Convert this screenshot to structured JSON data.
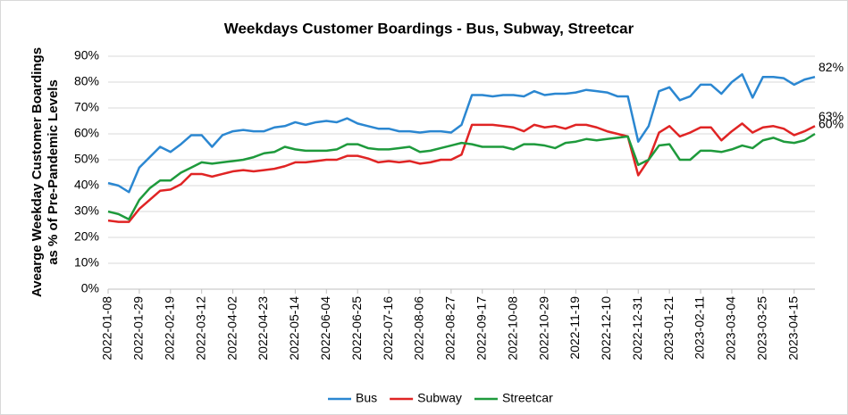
{
  "chart_data": {
    "type": "line",
    "title": "Weekdays Customer Boardings - Bus, Subway, Streetcar",
    "ylabel": [
      "Avearge Weekday Customer Boardings",
      "as % of Pre-Pandemic Levels"
    ],
    "categories": [
      "2022-01-08",
      null,
      null,
      "2022-01-29",
      null,
      null,
      "2022-02-19",
      null,
      null,
      "2022-03-12",
      null,
      null,
      "2022-04-02",
      null,
      null,
      "2022-04-23",
      null,
      null,
      "2022-05-14",
      null,
      null,
      "2022-06-04",
      null,
      null,
      "2022-06-25",
      null,
      null,
      "2022-07-16",
      null,
      null,
      "2022-08-06",
      null,
      null,
      "2022-08-27",
      null,
      null,
      "2022-09-17",
      null,
      null,
      "2022-10-08",
      null,
      null,
      "2022-10-29",
      null,
      null,
      "2022-11-19",
      null,
      null,
      "2022-12-10",
      null,
      null,
      "2022-12-31",
      null,
      null,
      "2023-01-21",
      null,
      null,
      "2023-02-11",
      null,
      null,
      "2023-03-04",
      null,
      null,
      "2023-03-25",
      null,
      null,
      "2023-04-15",
      null,
      null
    ],
    "series": [
      {
        "name": "Bus",
        "color": "#2b87d1",
        "end_label": "82%",
        "values": [
          41,
          40,
          37.5,
          47,
          51,
          55,
          53,
          56,
          59.5,
          59.5,
          55,
          59.5,
          61,
          61.5,
          61,
          61,
          62.5,
          63,
          64.5,
          63.5,
          64.5,
          65,
          64.5,
          66,
          64,
          63,
          62,
          62,
          61,
          61,
          60.5,
          61,
          61,
          60.5,
          63.5,
          75,
          75,
          74.5,
          75,
          75,
          74.5,
          76.5,
          75,
          75.5,
          75.5,
          76,
          77,
          76.5,
          76,
          74.5,
          74.5,
          57,
          63,
          76.5,
          78,
          73,
          74.5,
          79,
          79,
          75.5,
          80,
          83,
          74,
          82,
          82,
          81.5,
          79,
          81,
          82
        ]
      },
      {
        "name": "Subway",
        "color": "#e02424",
        "end_label": "63%",
        "values": [
          26.5,
          26,
          26,
          31,
          34.5,
          38,
          38.5,
          40.5,
          44.5,
          44.5,
          43.5,
          44.5,
          45.5,
          46,
          45.5,
          46,
          46.5,
          47.5,
          49,
          49,
          49.5,
          50,
          50,
          51.5,
          51.5,
          50.5,
          49,
          49.5,
          49,
          49.5,
          48.5,
          49,
          50,
          50,
          52,
          63.5,
          63.5,
          63.5,
          63,
          62.5,
          61,
          63.5,
          62.5,
          63,
          62,
          63.5,
          63.5,
          62.5,
          61,
          60,
          59,
          44,
          50,
          60.5,
          63,
          59,
          60.5,
          62.5,
          62.5,
          57.5,
          61,
          64,
          60.5,
          62.5,
          63,
          62,
          59.5,
          61,
          63
        ]
      },
      {
        "name": "Streetcar",
        "color": "#1e9a3c",
        "end_label": "60%",
        "values": [
          30,
          29,
          27,
          34.5,
          39,
          42,
          42,
          45,
          47,
          49,
          48.5,
          49,
          49.5,
          50,
          51,
          52.5,
          53,
          55,
          54,
          53.5,
          53.5,
          53.5,
          54,
          56,
          56,
          54.5,
          54,
          54,
          54.5,
          55,
          53,
          53.5,
          54.5,
          55.5,
          56.5,
          56,
          55,
          55,
          55,
          54,
          56,
          56,
          55.5,
          54.5,
          56.5,
          57,
          58,
          57.5,
          58,
          58.5,
          59,
          48,
          50,
          55.5,
          56,
          50,
          50,
          53.5,
          53.5,
          53,
          54,
          55.5,
          54.5,
          57.5,
          58.5,
          57,
          56.5,
          57.5,
          60
        ]
      }
    ],
    "ylim": [
      0,
      90
    ],
    "yticks": [
      {
        "value": 0,
        "label": "0%"
      },
      {
        "value": 10,
        "label": "10%"
      },
      {
        "value": 20,
        "label": "20%"
      },
      {
        "value": 30,
        "label": "30%"
      },
      {
        "value": 40,
        "label": "40%"
      },
      {
        "value": 50,
        "label": "50%"
      },
      {
        "value": 60,
        "label": "60%"
      },
      {
        "value": 70,
        "label": "70%"
      },
      {
        "value": 80,
        "label": "80%"
      },
      {
        "value": 90,
        "label": "90%"
      }
    ],
    "grid": true,
    "legend": "bottom"
  }
}
